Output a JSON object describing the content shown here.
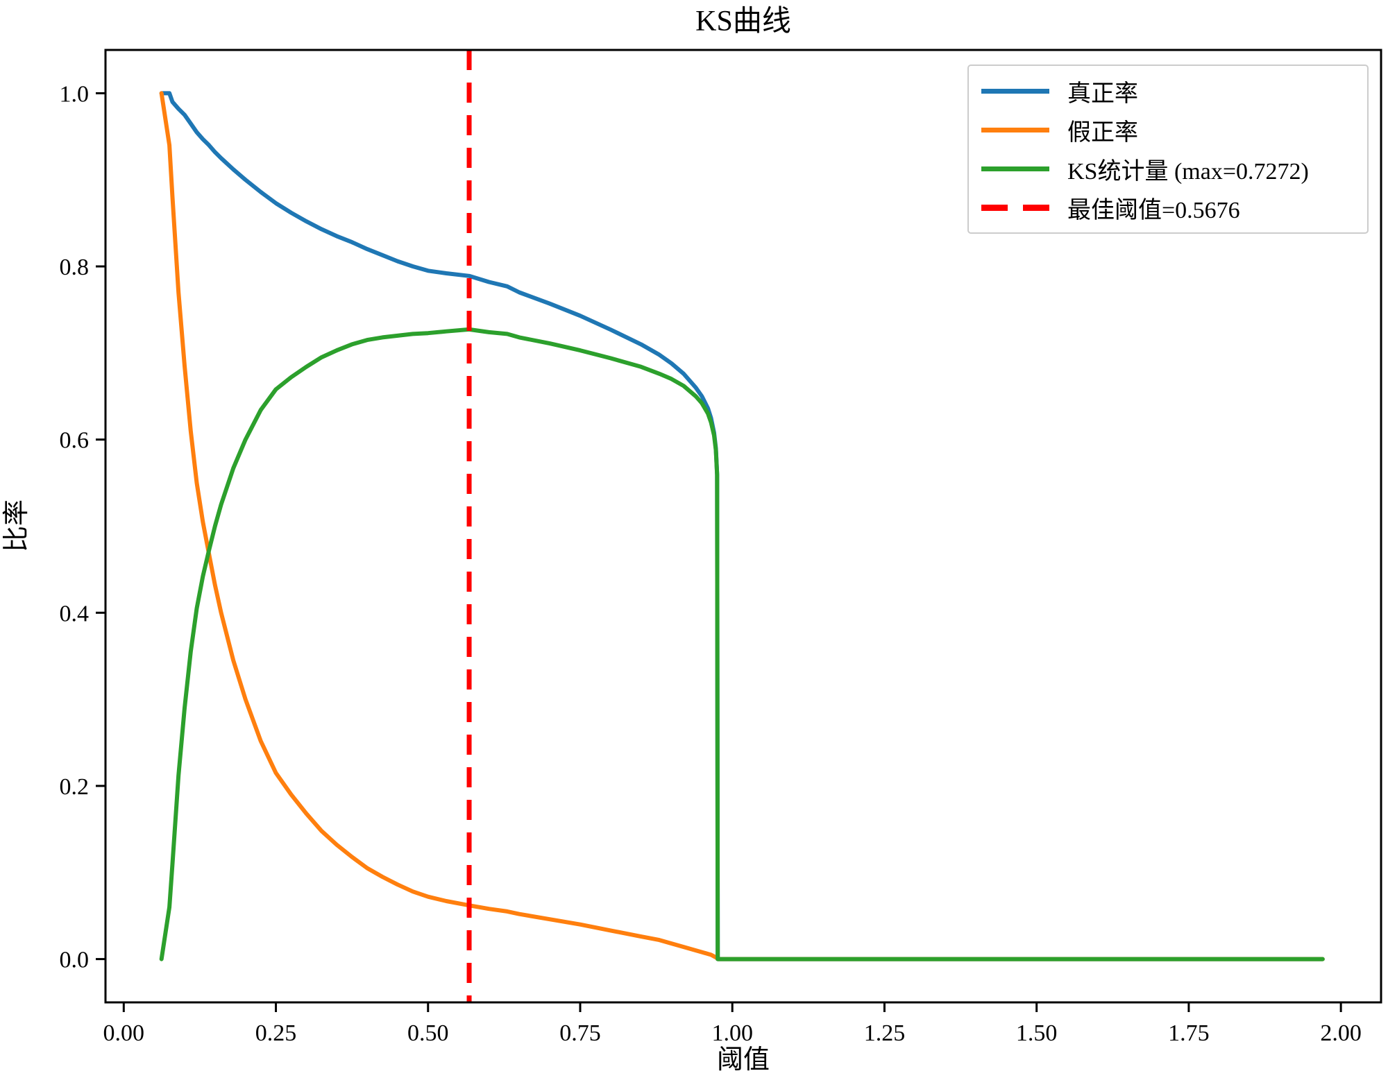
{
  "figure": {
    "title": "KS曲线"
  },
  "chart_data": {
    "type": "line",
    "title": "KS曲线",
    "xlabel": "阈值",
    "ylabel": "比率",
    "grid": false,
    "legend_position": "upper right",
    "xlim": [
      -0.03,
      2.066
    ],
    "ylim": [
      -0.05,
      1.05
    ],
    "x_ticks": [
      0,
      0.25,
      0.5,
      0.75,
      1.0,
      1.25,
      1.5,
      1.75,
      2.0
    ],
    "x_tick_labels": [
      "0.00",
      "0.25",
      "0.50",
      "0.75",
      "1.00",
      "1.25",
      "1.50",
      "1.75",
      "2.00"
    ],
    "y_ticks": [
      0,
      0.2,
      0.4,
      0.6,
      0.8,
      1.0
    ],
    "y_tick_labels": [
      "0.0",
      "0.2",
      "0.4",
      "0.6",
      "0.8",
      "1.0"
    ],
    "ks_max": 0.7272,
    "best_threshold": 0.5676,
    "x": [
      0.062,
      0.075,
      0.08,
      0.09,
      0.1,
      0.11,
      0.12,
      0.13,
      0.14,
      0.15,
      0.16,
      0.18,
      0.2,
      0.225,
      0.25,
      0.275,
      0.3,
      0.325,
      0.35,
      0.375,
      0.4,
      0.425,
      0.45,
      0.475,
      0.5,
      0.53,
      0.5676,
      0.6,
      0.63,
      0.65,
      0.7,
      0.75,
      0.8,
      0.85,
      0.88,
      0.9,
      0.92,
      0.94,
      0.95,
      0.96,
      0.965,
      0.97,
      0.973,
      0.975,
      0.976,
      1.0,
      1.5,
      1.97
    ],
    "series": [
      {
        "name": "真正率",
        "color": "#1f77b4",
        "style": "solid",
        "values": [
          1.0,
          1.0,
          0.99,
          0.982,
          0.975,
          0.965,
          0.955,
          0.947,
          0.94,
          0.932,
          0.925,
          0.912,
          0.9,
          0.886,
          0.873,
          0.862,
          0.852,
          0.843,
          0.835,
          0.828,
          0.82,
          0.813,
          0.806,
          0.8,
          0.795,
          0.792,
          0.789,
          0.782,
          0.777,
          0.77,
          0.757,
          0.743,
          0.727,
          0.71,
          0.698,
          0.688,
          0.676,
          0.66,
          0.65,
          0.636,
          0.625,
          0.608,
          0.59,
          0.56,
          0.0,
          0.0,
          0.0,
          0.0
        ]
      },
      {
        "name": "假正率",
        "color": "#ff7f0e",
        "style": "solid",
        "values": [
          1.0,
          0.94,
          0.88,
          0.77,
          0.685,
          0.61,
          0.55,
          0.505,
          0.468,
          0.432,
          0.4,
          0.345,
          0.3,
          0.252,
          0.215,
          0.19,
          0.168,
          0.148,
          0.132,
          0.118,
          0.105,
          0.095,
          0.086,
          0.078,
          0.072,
          0.067,
          0.062,
          0.058,
          0.055,
          0.052,
          0.046,
          0.04,
          0.033,
          0.026,
          0.022,
          0.018,
          0.014,
          0.01,
          0.008,
          0.006,
          0.005,
          0.003,
          0.002,
          0.001,
          0.0,
          0.0,
          0.0,
          0.0
        ]
      },
      {
        "name": "KS统计量 (max=0.7272)",
        "color": "#2ca02c",
        "style": "solid",
        "values": [
          0.0,
          0.06,
          0.11,
          0.212,
          0.29,
          0.355,
          0.405,
          0.442,
          0.472,
          0.5,
          0.525,
          0.567,
          0.6,
          0.634,
          0.658,
          0.672,
          0.684,
          0.695,
          0.703,
          0.71,
          0.715,
          0.718,
          0.72,
          0.722,
          0.723,
          0.725,
          0.7272,
          0.724,
          0.722,
          0.718,
          0.711,
          0.703,
          0.694,
          0.684,
          0.676,
          0.67,
          0.662,
          0.65,
          0.642,
          0.63,
          0.62,
          0.605,
          0.588,
          0.559,
          0.0,
          0.0,
          0.0,
          0.0
        ]
      }
    ],
    "vline": {
      "x": 0.5676,
      "label": "最佳阈值=0.5676",
      "color": "#ff0000",
      "style": "dashed"
    }
  }
}
